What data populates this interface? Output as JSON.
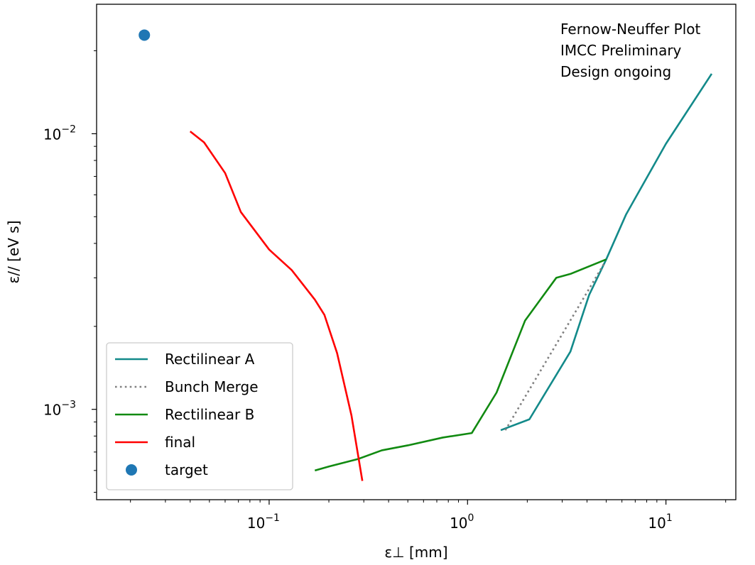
{
  "chart_data": {
    "type": "line",
    "xlabel": "ε⊥ [mm]",
    "ylabel": "ε// [eV s]",
    "xscale": "log",
    "yscale": "log",
    "xlim": [
      0.0135,
      22.5
    ],
    "ylim": [
      0.00047,
      0.0295
    ],
    "x_ticks": [
      {
        "value": 0.1,
        "label": "10",
        "exp": "−1"
      },
      {
        "value": 1,
        "label": "10",
        "exp": "0"
      },
      {
        "value": 10,
        "label": "10",
        "exp": "1"
      }
    ],
    "y_ticks": [
      {
        "value": 0.001,
        "label": "10",
        "exp": "−3"
      },
      {
        "value": 0.01,
        "label": "10",
        "exp": "−2"
      }
    ],
    "annotation": [
      "Fernow-Neuffer Plot",
      "IMCC Preliminary",
      "Design ongoing"
    ],
    "legend_position": "lower-left",
    "series": [
      {
        "name": "Rectilinear A",
        "style": "solid",
        "color": "#138a8a",
        "points": [
          [
            1.47,
            0.00084
          ],
          [
            2.05,
            0.00092
          ],
          [
            3.3,
            0.00162
          ],
          [
            4.1,
            0.0026
          ],
          [
            5.0,
            0.0035
          ],
          [
            6.3,
            0.0051
          ],
          [
            10.0,
            0.0092
          ],
          [
            17.0,
            0.0165
          ]
        ]
      },
      {
        "name": "Bunch Merge",
        "style": "dotted",
        "color": "#808080",
        "points": [
          [
            1.55,
            0.00084
          ],
          [
            4.9,
            0.0034
          ]
        ]
      },
      {
        "name": "Rectilinear B",
        "style": "solid",
        "color": "#118a11",
        "points": [
          [
            0.17,
            0.0006
          ],
          [
            0.2,
            0.00062
          ],
          [
            0.28,
            0.00066
          ],
          [
            0.37,
            0.00071
          ],
          [
            0.5,
            0.00074
          ],
          [
            0.75,
            0.00079
          ],
          [
            1.05,
            0.00082
          ],
          [
            1.4,
            0.00115
          ],
          [
            1.95,
            0.0021
          ],
          [
            2.8,
            0.003
          ],
          [
            3.3,
            0.0031
          ],
          [
            5.0,
            0.0035
          ]
        ]
      },
      {
        "name": "final",
        "style": "solid",
        "color": "#ff0000",
        "points": [
          [
            0.04,
            0.0102
          ],
          [
            0.047,
            0.0093
          ],
          [
            0.06,
            0.0072
          ],
          [
            0.072,
            0.0052
          ],
          [
            0.1,
            0.0038
          ],
          [
            0.13,
            0.0032
          ],
          [
            0.17,
            0.0025
          ],
          [
            0.19,
            0.0022
          ],
          [
            0.22,
            0.0016
          ],
          [
            0.26,
            0.00095
          ],
          [
            0.295,
            0.00055
          ]
        ]
      },
      {
        "name": "target",
        "style": "marker",
        "color": "#1f77b4",
        "points": [
          [
            0.0235,
            0.0228
          ]
        ]
      }
    ]
  }
}
